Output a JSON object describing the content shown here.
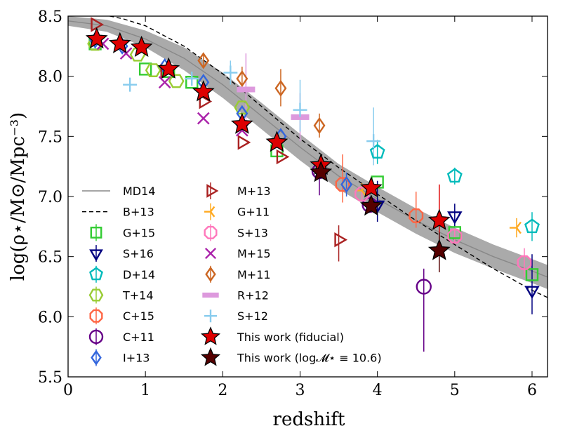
{
  "chart_data": {
    "type": "scatter",
    "title": "",
    "xlabel": "redshift",
    "ylabel": "log(ρ⋆/M⊙/Mpc⁻³)",
    "xlim": [
      0,
      6.2
    ],
    "ylim": [
      5.5,
      8.5
    ],
    "xticks": [
      0,
      1,
      2,
      3,
      4,
      5,
      6
    ],
    "yticks": [
      5.5,
      6.0,
      6.5,
      7.0,
      7.5,
      8.0,
      8.5
    ],
    "xtick_labels": [
      "0",
      "1",
      "2",
      "3",
      "4",
      "5",
      "6"
    ],
    "ytick_labels": [
      "5.5",
      "6.0",
      "6.5",
      "7.0",
      "7.5",
      "8.0",
      "8.5"
    ],
    "band": {
      "name": "MD14 band",
      "color": "#aaaaaa",
      "x": [
        0,
        0.5,
        1,
        1.5,
        2,
        2.5,
        3,
        3.5,
        4,
        4.5,
        5,
        5.5,
        6,
        6.2
      ],
      "upper": [
        8.5,
        8.47,
        8.38,
        8.24,
        8.03,
        7.78,
        7.52,
        7.27,
        7.08,
        6.9,
        6.74,
        6.6,
        6.48,
        6.43
      ],
      "lower": [
        8.42,
        8.37,
        8.24,
        8.05,
        7.82,
        7.56,
        7.3,
        7.06,
        6.87,
        6.69,
        6.53,
        6.4,
        6.28,
        6.23
      ]
    },
    "curves": [
      {
        "name": "MD14",
        "color": "#888888",
        "dash": "",
        "x": [
          0,
          0.5,
          1,
          1.5,
          2,
          2.5,
          3,
          3.5,
          4,
          4.5,
          5,
          5.5,
          6,
          6.2
        ],
        "y": [
          8.46,
          8.42,
          8.31,
          8.15,
          7.93,
          7.67,
          7.41,
          7.17,
          6.98,
          6.8,
          6.64,
          6.5,
          6.38,
          6.33
        ]
      },
      {
        "name": "B+13",
        "color": "#000000",
        "dash": "6,4",
        "x": [
          0,
          0.3,
          0.7,
          1,
          1.5,
          2,
          2.5,
          3,
          3.5,
          4,
          4.5,
          5,
          5.5,
          6,
          6.2
        ],
        "y": [
          8.55,
          8.53,
          8.48,
          8.42,
          8.25,
          8.02,
          7.75,
          7.48,
          7.24,
          7.02,
          6.8,
          6.6,
          6.4,
          6.22,
          6.16
        ]
      }
    ],
    "series": [
      {
        "name": "G+15",
        "marker": "square",
        "color": "#33cc33",
        "filled": false,
        "points": [
          {
            "x": 0.35,
            "y": 8.27
          },
          {
            "x": 1.0,
            "y": 8.06
          },
          {
            "x": 1.3,
            "y": 8.04
          },
          {
            "x": 1.6,
            "y": 7.95
          },
          {
            "x": 2.7,
            "y": 7.38
          },
          {
            "x": 4.0,
            "y": 7.12
          },
          {
            "x": 5.0,
            "y": 6.7
          },
          {
            "x": 6.0,
            "y": 6.35
          }
        ]
      },
      {
        "name": "S+16",
        "marker": "tri-down",
        "color": "#000080",
        "filled": false,
        "points": [
          {
            "x": 4.0,
            "y": 6.93,
            "err": [
              0.14,
              0.2
            ]
          },
          {
            "x": 5.0,
            "y": 6.84,
            "err": [
              0.1,
              0.1
            ]
          },
          {
            "x": 6.0,
            "y": 6.22,
            "err": [
              0.2,
              0.3
            ]
          }
        ]
      },
      {
        "name": "D+14",
        "marker": "pentagon",
        "color": "#00bbbb",
        "filled": false,
        "points": [
          {
            "x": 4.0,
            "y": 7.37,
            "err": [
              0.1,
              0.1
            ]
          },
          {
            "x": 5.0,
            "y": 7.17,
            "err": [
              0.07,
              0.07
            ]
          },
          {
            "x": 6.0,
            "y": 6.75,
            "err": [
              0.12,
              0.12
            ]
          }
        ]
      },
      {
        "name": "T+14",
        "marker": "hexagon",
        "color": "#99cc33",
        "filled": false,
        "points": [
          {
            "x": 0.35,
            "y": 8.27
          },
          {
            "x": 0.9,
            "y": 8.18
          },
          {
            "x": 1.1,
            "y": 8.05
          },
          {
            "x": 1.4,
            "y": 7.96
          },
          {
            "x": 2.25,
            "y": 7.74
          }
        ]
      },
      {
        "name": "C+15",
        "marker": "octagon",
        "color": "#ff6644",
        "filled": false,
        "points": [
          {
            "x": 3.55,
            "y": 7.1,
            "err": [
              0.15,
              0.25
            ]
          },
          {
            "x": 4.5,
            "y": 6.84,
            "err": [
              0.1,
              0.2
            ]
          }
        ]
      },
      {
        "name": "C+11",
        "marker": "circle",
        "color": "#660088",
        "filled": false,
        "points": [
          {
            "x": 3.25,
            "y": 7.21,
            "err": [
              0.2,
              0.1
            ]
          },
          {
            "x": 3.9,
            "y": 6.93,
            "err": [
              0.05,
              0.05
            ]
          },
          {
            "x": 4.6,
            "y": 6.25,
            "err": [
              0.54,
              0.15
            ]
          }
        ]
      },
      {
        "name": "I+13",
        "marker": "diamond",
        "color": "#3366dd",
        "filled": false,
        "points": [
          {
            "x": 0.35,
            "y": 8.3
          },
          {
            "x": 0.7,
            "y": 8.25
          },
          {
            "x": 1.25,
            "y": 8.08
          },
          {
            "x": 1.75,
            "y": 7.95
          },
          {
            "x": 2.25,
            "y": 7.69
          },
          {
            "x": 2.75,
            "y": 7.5
          },
          {
            "x": 3.6,
            "y": 7.1,
            "err": [
              0.1,
              0.1
            ]
          }
        ]
      },
      {
        "name": "M+13",
        "marker": "tri-right",
        "color": "#aa2222",
        "filled": false,
        "points": [
          {
            "x": 0.35,
            "y": 8.43
          },
          {
            "x": 1.25,
            "y": 8.04
          },
          {
            "x": 1.75,
            "y": 7.79
          },
          {
            "x": 2.25,
            "y": 7.45
          },
          {
            "x": 2.75,
            "y": 7.33
          },
          {
            "x": 3.5,
            "y": 6.64,
            "err": [
              0.18,
              0.12
            ]
          }
        ]
      },
      {
        "name": "G+11",
        "marker": "tri-y",
        "color": "#ffaa22",
        "filled": false,
        "points": [
          {
            "x": 3.8,
            "y": 7.05,
            "err": [
              0.06,
              0.06
            ]
          },
          {
            "x": 5.8,
            "y": 6.74,
            "err": [
              0.08,
              0.08
            ]
          }
        ]
      },
      {
        "name": "S+13",
        "marker": "octagon",
        "color": "#ff77bb",
        "filled": false,
        "points": [
          {
            "x": 3.8,
            "y": 7.02,
            "err": [
              0.05,
              0.05
            ]
          },
          {
            "x": 5.0,
            "y": 6.67,
            "err": [
              0.05,
              0.05
            ]
          },
          {
            "x": 5.9,
            "y": 6.45,
            "err": [
              0.12,
              0.12
            ]
          }
        ]
      },
      {
        "name": "M+15",
        "marker": "x",
        "color": "#aa22aa",
        "filled": false,
        "points": [
          {
            "x": 0.45,
            "y": 8.27
          },
          {
            "x": 0.75,
            "y": 8.19
          },
          {
            "x": 1.25,
            "y": 7.95
          },
          {
            "x": 1.75,
            "y": 7.65
          },
          {
            "x": 2.25,
            "y": 7.55
          }
        ]
      },
      {
        "name": "M+11",
        "marker": "diamond",
        "color": "#cc6622",
        "filled": false,
        "points": [
          {
            "x": 1.75,
            "y": 8.13,
            "err": [
              0.05,
              0.05
            ]
          },
          {
            "x": 2.25,
            "y": 7.98,
            "err": [
              0.1,
              0.1
            ]
          },
          {
            "x": 2.75,
            "y": 7.9,
            "err": [
              0.15,
              0.16
            ]
          },
          {
            "x": 3.25,
            "y": 7.59,
            "err": [
              0.1,
              0.1
            ]
          }
        ]
      },
      {
        "name": "R+12",
        "marker": "bar",
        "color": "#dd99dd",
        "filled": true,
        "points": [
          {
            "x": 2.3,
            "y": 7.89,
            "err": [
              0.3,
              0.3
            ]
          },
          {
            "x": 3.0,
            "y": 7.66,
            "err": [
              0.2,
              0.2
            ]
          }
        ]
      },
      {
        "name": "S+12",
        "marker": "plus",
        "color": "#88ccee",
        "filled": false,
        "points": [
          {
            "x": 0.8,
            "y": 7.93
          },
          {
            "x": 1.6,
            "y": 7.98
          },
          {
            "x": 2.1,
            "y": 8.03,
            "err": [
              0.1,
              0.1
            ]
          },
          {
            "x": 3.0,
            "y": 7.72,
            "err": [
              0.18,
              0.25
            ]
          },
          {
            "x": 3.95,
            "y": 7.46,
            "err": [
              0.2,
              0.28
            ]
          }
        ]
      },
      {
        "name": "This work (fiducial)",
        "marker": "star",
        "color": "#dd0000",
        "filled": true,
        "points": [
          {
            "x": 0.37,
            "y": 8.31
          },
          {
            "x": 0.67,
            "y": 8.27
          },
          {
            "x": 0.95,
            "y": 8.24
          },
          {
            "x": 1.3,
            "y": 8.06
          },
          {
            "x": 1.75,
            "y": 7.87
          },
          {
            "x": 2.25,
            "y": 7.6
          },
          {
            "x": 2.7,
            "y": 7.45
          },
          {
            "x": 3.27,
            "y": 7.26
          },
          {
            "x": 3.92,
            "y": 7.07
          },
          {
            "x": 4.8,
            "y": 6.8,
            "err": [
              0.15,
              0.3
            ]
          }
        ]
      },
      {
        "name": "This work (log𝓜⋆ ≡ 10.6)",
        "marker": "star",
        "color": "#550000",
        "filled": true,
        "points": [
          {
            "x": 3.27,
            "y": 7.2
          },
          {
            "x": 3.92,
            "y": 6.92
          },
          {
            "x": 4.8,
            "y": 6.55,
            "err": [
              0.18,
              0.15
            ]
          }
        ]
      }
    ],
    "legend": {
      "placement": "lower-left",
      "col1": [
        "MD14",
        "B+13",
        "G+15",
        "S+16",
        "D+14",
        "T+14",
        "C+15",
        "C+11",
        "I+13"
      ],
      "col2": [
        "M+13",
        "G+11",
        "S+13",
        "M+15",
        "M+11",
        "R+12",
        "S+12",
        "This work (fiducial)",
        "This work (log𝓜⋆ ≡ 10.6)"
      ]
    }
  }
}
